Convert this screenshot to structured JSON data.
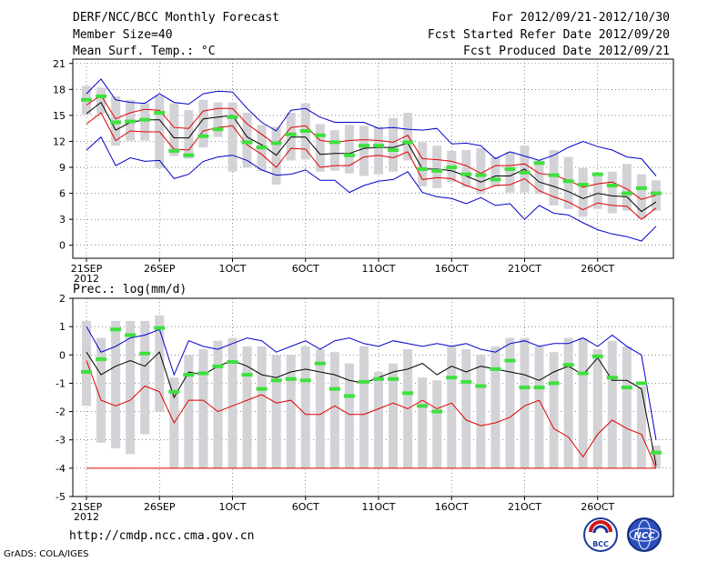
{
  "header": {
    "title": "DERF/NCC/BCC Monthly Forecast",
    "member_size": "Member Size=40",
    "variable1": "Mean Surf. Temp.: °C",
    "period": "For 2012/09/21-2012/10/30",
    "started": "Fcst Started Refer Date 2012/09/20",
    "produced": "Fcst Produced Date 2012/09/21"
  },
  "footer": {
    "url": "http://cmdp.ncc.cma.gov.cn",
    "credit": "GrADS: COLA/IGES",
    "logo_left": "BCC",
    "logo_right": "NCC"
  },
  "colors": {
    "box": "#d3d3d7",
    "obs": "#3ee03e",
    "max": "#0000cc",
    "min": "#0000cc",
    "mean": "#000000",
    "spread": "#e00000"
  },
  "chart_data": [
    {
      "type": "box-line",
      "title": "Mean Surf. Temp.: °C",
      "ylabel": "°C",
      "xlabel": "",
      "ylim": [
        -1.5,
        21.5
      ],
      "yticks": [
        0,
        3,
        6,
        9,
        12,
        15,
        18,
        21
      ],
      "grid": true,
      "x_tick_labels": [
        {
          "day": 1,
          "label": "21SEP",
          "sub": "2012"
        },
        {
          "day": 6,
          "label": "26SEP"
        },
        {
          "day": 11,
          "label": "1OCT"
        },
        {
          "day": 16,
          "label": "6OCT"
        },
        {
          "day": 21,
          "label": "11OCT"
        },
        {
          "day": 26,
          "label": "16OCT"
        },
        {
          "day": 31,
          "label": "21OCT"
        },
        {
          "day": 36,
          "label": "26OCT"
        }
      ],
      "days": 40,
      "series": [
        {
          "name": "ensemble max",
          "color": "#0000cc",
          "values": [
            17.5,
            19.2,
            16.8,
            16.5,
            16.4,
            17.5,
            16.5,
            16.3,
            17.5,
            17.8,
            17.7,
            15.8,
            14.2,
            13.2,
            15.6,
            15.8,
            14.8,
            14.2,
            14.2,
            14.2,
            13.5,
            13.6,
            13.4,
            13.3,
            13.5,
            11.7,
            11.8,
            11.5,
            10.0,
            10.8,
            10.3,
            9.8,
            10.4,
            11.3,
            12.0,
            11.4,
            11.0,
            10.2,
            10.0,
            8.0
          ]
        },
        {
          "name": "ensemble mean +sd",
          "color": "#e00000",
          "values": [
            16.2,
            17.3,
            14.6,
            15.3,
            15.7,
            15.6,
            13.6,
            13.5,
            15.5,
            15.8,
            15.8,
            14.0,
            12.8,
            11.6,
            13.6,
            13.8,
            12.1,
            11.9,
            12.1,
            12.2,
            12.1,
            11.9,
            12.7,
            10.0,
            9.9,
            9.7,
            9.2,
            8.3,
            9.2,
            9.2,
            9.4,
            8.3,
            8.1,
            7.5,
            6.7,
            7.1,
            7.3,
            6.5,
            5.3,
            5.8
          ]
        },
        {
          "name": "ensemble mean",
          "color": "#000000",
          "values": [
            15.2,
            16.5,
            13.3,
            14.2,
            14.5,
            14.5,
            12.4,
            12.4,
            14.6,
            14.8,
            15.0,
            12.5,
            11.6,
            10.4,
            12.5,
            12.5,
            10.5,
            10.6,
            10.6,
            11.2,
            11.3,
            11.3,
            11.8,
            8.8,
            8.8,
            8.6,
            8.0,
            7.3,
            8.0,
            8.0,
            8.8,
            7.3,
            6.8,
            6.2,
            5.4,
            6.0,
            5.7,
            5.6,
            3.9,
            5.0
          ]
        },
        {
          "name": "ensemble mean -sd",
          "color": "#e00000",
          "values": [
            14.0,
            15.3,
            12.1,
            13.2,
            13.1,
            13.1,
            11.1,
            11.0,
            13.2,
            13.6,
            13.8,
            11.6,
            10.5,
            9.0,
            11.2,
            11.1,
            9.0,
            9.2,
            9.2,
            10.2,
            10.4,
            10.1,
            10.8,
            7.6,
            7.8,
            7.7,
            6.9,
            6.3,
            6.9,
            7.0,
            7.7,
            6.3,
            5.6,
            5.0,
            4.1,
            4.9,
            4.6,
            4.5,
            3.0,
            4.3
          ]
        },
        {
          "name": "ensemble min",
          "color": "#0000cc",
          "values": [
            11.0,
            12.5,
            9.2,
            10.1,
            9.7,
            9.8,
            7.7,
            8.2,
            9.7,
            10.2,
            10.4,
            9.8,
            8.7,
            8.1,
            8.2,
            8.7,
            7.5,
            7.5,
            6.1,
            6.9,
            7.4,
            7.6,
            8.5,
            6.1,
            5.6,
            5.4,
            4.8,
            5.5,
            4.6,
            4.8,
            3.0,
            4.6,
            3.7,
            3.5,
            2.6,
            1.8,
            1.3,
            1.0,
            0.5,
            2.2
          ]
        },
        {
          "name": "box top",
          "color": "#d3d3d7",
          "values": [
            18.4,
            18.2,
            17.2,
            16.8,
            16.4,
            17.3,
            16.4,
            15.6,
            16.8,
            16.5,
            16.5,
            15.3,
            13.9,
            13.7,
            15.3,
            16.4,
            14.0,
            13.3,
            13.9,
            13.8,
            13.7,
            14.7,
            15.3,
            11.9,
            11.5,
            10.9,
            11.0,
            11.2,
            10.2,
            10.8,
            11.5,
            9.8,
            11.0,
            10.2,
            8.9,
            8.4,
            8.5,
            9.4,
            8.2,
            7.5
          ]
        },
        {
          "name": "box bottom",
          "color": "#d3d3d7",
          "values": [
            15.1,
            15.2,
            11.5,
            12.1,
            12.1,
            8.9,
            10.3,
            10.0,
            11.3,
            12.5,
            8.5,
            9.0,
            8.6,
            7.0,
            9.8,
            9.9,
            8.5,
            8.6,
            8.3,
            8.0,
            8.2,
            8.5,
            9.8,
            6.8,
            6.6,
            7.3,
            6.7,
            5.9,
            6.8,
            6.1,
            6.1,
            5.9,
            4.6,
            4.2,
            3.3,
            4.2,
            3.7,
            4.0,
            3.1,
            4.0
          ]
        },
        {
          "name": "observed",
          "color": "#3ee03e",
          "values": [
            16.8,
            17.2,
            14.2,
            14.3,
            14.5,
            15.3,
            10.9,
            10.4,
            12.6,
            13.4,
            14.8,
            11.9,
            11.3,
            11.8,
            12.8,
            13.2,
            12.7,
            11.9,
            10.4,
            11.5,
            11.5,
            11.0,
            11.9,
            8.8,
            8.6,
            9.0,
            8.2,
            8.1,
            7.6,
            8.8,
            8.4,
            9.5,
            8.1,
            7.4,
            7.0,
            8.2,
            6.9,
            6.0,
            6.6,
            6.0
          ]
        }
      ]
    },
    {
      "type": "box-line",
      "title": "Prec.: log(mm/d)",
      "ylabel": "log(mm/d)",
      "xlabel": "",
      "ylim": [
        -5,
        2
      ],
      "yticks": [
        -5,
        -4,
        -3,
        -2,
        -1,
        0,
        1,
        2
      ],
      "grid": true,
      "x_tick_labels": [
        {
          "day": 1,
          "label": "21SEP",
          "sub": "2012"
        },
        {
          "day": 6,
          "label": "26SEP"
        },
        {
          "day": 11,
          "label": "1OCT"
        },
        {
          "day": 16,
          "label": "6OCT"
        },
        {
          "day": 21,
          "label": "11OCT"
        },
        {
          "day": 26,
          "label": "16OCT"
        },
        {
          "day": 31,
          "label": "21OCT"
        },
        {
          "day": 36,
          "label": "26OCT"
        }
      ],
      "days": 40,
      "series": [
        {
          "name": "ensemble max",
          "color": "#0000cc",
          "values": [
            1.0,
            0.1,
            0.3,
            0.6,
            0.7,
            0.9,
            -0.7,
            0.5,
            0.3,
            0.2,
            0.4,
            0.6,
            0.5,
            0.1,
            0.3,
            0.5,
            0.2,
            0.5,
            0.6,
            0.4,
            0.3,
            0.5,
            0.4,
            0.3,
            0.4,
            0.3,
            0.4,
            0.2,
            0.1,
            0.4,
            0.5,
            0.3,
            0.4,
            0.4,
            0.6,
            0.3,
            0.7,
            0.3,
            0.0,
            -3.0
          ]
        },
        {
          "name": "ensemble mean",
          "color": "#000000",
          "values": [
            0.1,
            -0.7,
            -0.4,
            -0.2,
            -0.4,
            0.1,
            -1.5,
            -0.6,
            -0.7,
            -0.4,
            -0.2,
            -0.4,
            -0.7,
            -0.8,
            -0.6,
            -0.5,
            -0.6,
            -0.7,
            -0.9,
            -1.0,
            -0.8,
            -0.6,
            -0.5,
            -0.3,
            -0.7,
            -0.4,
            -0.6,
            -0.4,
            -0.5,
            -0.6,
            -0.7,
            -0.9,
            -0.6,
            -0.4,
            -0.7,
            -0.1,
            -0.9,
            -0.9,
            -1.2,
            -3.9
          ]
        },
        {
          "name": "ensemble mean -sd",
          "color": "#e00000",
          "values": [
            -0.2,
            -1.6,
            -1.8,
            -1.6,
            -1.1,
            -1.3,
            -2.4,
            -1.6,
            -1.6,
            -2.0,
            -1.8,
            -1.6,
            -1.4,
            -1.7,
            -1.6,
            -2.1,
            -2.1,
            -1.8,
            -2.1,
            -2.1,
            -1.9,
            -1.7,
            -1.9,
            -1.6,
            -1.9,
            -1.7,
            -2.3,
            -2.5,
            -2.4,
            -2.2,
            -1.8,
            -1.6,
            -2.6,
            -2.9,
            -3.6,
            -2.8,
            -2.3,
            -2.6,
            -2.8,
            -4.0
          ]
        },
        {
          "name": "ensemble min",
          "color": "#e00000",
          "values": [
            -4.0,
            -4.0,
            -4.0,
            -4.0,
            -4.0,
            -4.0,
            -4.0,
            -4.0,
            -4.0,
            -4.0,
            -4.0,
            -4.0,
            -4.0,
            -4.0,
            -4.0,
            -4.0,
            -4.0,
            -4.0,
            -4.0,
            -4.0,
            -4.0,
            -4.0,
            -4.0,
            -4.0,
            -4.0,
            -4.0,
            -4.0,
            -4.0,
            -4.0,
            -4.0,
            -4.0,
            -4.0,
            -4.0,
            -4.0,
            -4.0,
            -4.0,
            -4.0,
            -4.0,
            -4.0,
            -4.0
          ]
        },
        {
          "name": "box top",
          "color": "#d3d3d7",
          "values": [
            1.2,
            0.6,
            1.2,
            1.2,
            1.2,
            1.4,
            -0.8,
            0.0,
            0.2,
            0.5,
            0.6,
            0.3,
            0.3,
            0.0,
            0.0,
            0.3,
            0.2,
            0.1,
            -0.3,
            0.3,
            -0.6,
            -0.3,
            0.2,
            -0.8,
            -0.9,
            0.3,
            0.2,
            0.0,
            0.3,
            0.6,
            0.6,
            0.3,
            0.1,
            0.6,
            0.6,
            0.2,
            0.5,
            0.3,
            -1.1,
            -3.2
          ]
        },
        {
          "name": "box bottom",
          "color": "#d3d3d7",
          "values": [
            -1.8,
            -3.1,
            -3.3,
            -3.5,
            -2.8,
            -2.0,
            -4.0,
            -4.0,
            -4.0,
            -4.0,
            -4.0,
            -4.0,
            -4.0,
            -4.0,
            -4.0,
            -4.0,
            -4.0,
            -4.0,
            -4.0,
            -4.0,
            -4.0,
            -4.0,
            -4.0,
            -4.0,
            -4.0,
            -4.0,
            -4.0,
            -4.0,
            -4.0,
            -4.0,
            -4.0,
            -4.0,
            -4.0,
            -4.0,
            -4.0,
            -4.0,
            -4.0,
            -4.0,
            -4.0,
            -4.0
          ]
        },
        {
          "name": "observed",
          "color": "#3ee03e",
          "values": [
            -0.6,
            -0.15,
            0.9,
            0.7,
            0.05,
            0.95,
            -1.3,
            -0.7,
            -0.65,
            -0.4,
            -0.25,
            -0.7,
            -1.2,
            -0.9,
            -0.85,
            -0.9,
            -0.3,
            -1.2,
            -1.45,
            -0.95,
            -0.85,
            -0.85,
            -1.35,
            -1.8,
            -2.0,
            -0.8,
            -0.95,
            -1.1,
            -0.5,
            -0.2,
            -1.15,
            -1.15,
            -1.0,
            -0.35,
            -0.65,
            -0.05,
            -0.8,
            -1.15,
            -1.0,
            -3.45
          ]
        }
      ]
    }
  ]
}
